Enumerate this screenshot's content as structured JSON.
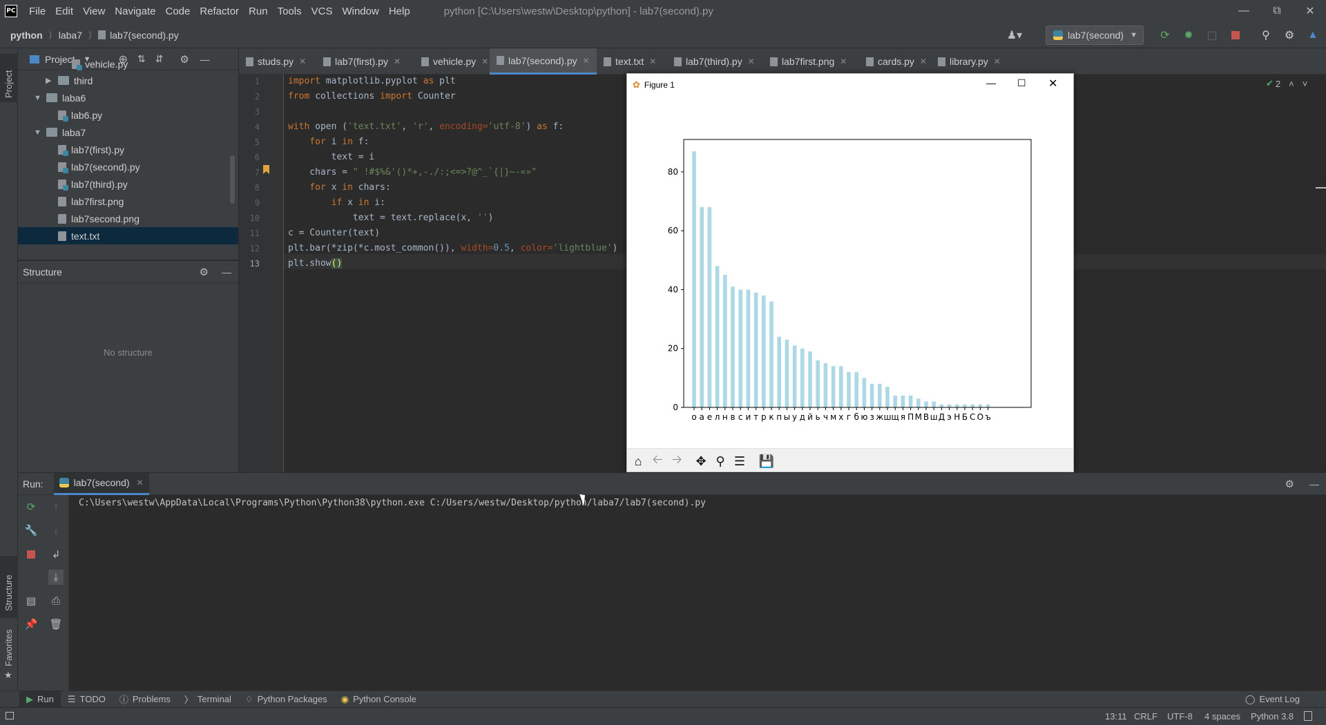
{
  "window": {
    "title": "python [C:\\Users\\westw\\Desktop\\python] - lab7(second).py",
    "menu": [
      "File",
      "Edit",
      "View",
      "Navigate",
      "Code",
      "Refactor",
      "Run",
      "Tools",
      "VCS",
      "Window",
      "Help"
    ]
  },
  "nav": {
    "breadcrumb": [
      "python",
      "laba7",
      "lab7(second).py"
    ],
    "run_config": "lab7(second)"
  },
  "side_tabs": {
    "project": "Project",
    "structure": "Structure",
    "favorites": "Favorites"
  },
  "project_panel": {
    "title": "Project",
    "tree": [
      {
        "label": "vehicle.py",
        "type": "py",
        "depth": 3
      },
      {
        "label": "third",
        "type": "folder",
        "depth": 2,
        "arrow": "▶"
      },
      {
        "label": "laba6",
        "type": "folder",
        "depth": 1,
        "arrow": "▼"
      },
      {
        "label": "lab6.py",
        "type": "py",
        "depth": 2
      },
      {
        "label": "laba7",
        "type": "folder",
        "depth": 1,
        "arrow": "▼"
      },
      {
        "label": "lab7(first).py",
        "type": "py",
        "depth": 2
      },
      {
        "label": "lab7(second).py",
        "type": "py",
        "depth": 2
      },
      {
        "label": "lab7(third).py",
        "type": "py",
        "depth": 2
      },
      {
        "label": "lab7first.png",
        "type": "file",
        "depth": 2
      },
      {
        "label": "lab7second.png",
        "type": "file",
        "depth": 2
      },
      {
        "label": "text.txt",
        "type": "file",
        "depth": 2,
        "selected": true
      }
    ]
  },
  "structure_panel": {
    "title": "Structure",
    "empty_text": "No structure"
  },
  "editor_tabs": [
    "studs.py",
    "lab7(first).py",
    "vehicle.py",
    "lab7(second).py",
    "text.txt",
    "lab7(third).py",
    "lab7first.png",
    "cards.py",
    "library.py"
  ],
  "active_tab": "lab7(second).py",
  "editor": {
    "line_numbers": [
      "1",
      "2",
      "3",
      "4",
      "5",
      "6",
      "7",
      "8",
      "9",
      "10",
      "11",
      "12",
      "13"
    ],
    "inspection_count": "2",
    "code": {
      "l1a": "import",
      "l1b": " matplotlib.pyplot ",
      "l1c": "as",
      "l1d": " plt",
      "l2a": "from",
      "l2b": " collections ",
      "l2c": "import",
      "l2d": " Counter",
      "l4a": "with",
      "l4b": " open (",
      "l4c": "'text.txt'",
      "l4d": ", ",
      "l4e": "'r'",
      "l4f": ", ",
      "l4g": "encoding=",
      "l4h": "'utf-8'",
      "l4i": ") ",
      "l4j": "as",
      "l4k": " f:",
      "l5a": "    for",
      "l5b": " i ",
      "l5c": "in",
      "l5d": " f:",
      "l6": "        text = i",
      "l7a": "    chars = ",
      "l7b": "\" !#$%&'()*+,-./:;<=>?@^_`{|}~-«»\"",
      "l8a": "    for",
      "l8b": " x ",
      "l8c": "in",
      "l8d": " chars:",
      "l9a": "        if",
      "l9b": " x ",
      "l9c": "in",
      "l9d": " i:",
      "l10a": "            text = text.replace(x, ",
      "l10b": "''",
      "l10c": ")",
      "l11": "c = Counter(text)",
      "l12a": "plt.bar(*zip(*c.most_common()), ",
      "l12b": "width=",
      "l12c": "0.5",
      "l12d": ", ",
      "l12e": "color=",
      "l12f": "'lightblue'",
      "l12g": ")",
      "l13a": "plt.show",
      "l13b": "()"
    }
  },
  "figure": {
    "title": "Figure 1",
    "toolbar": [
      "home-icon",
      "back-icon",
      "forward-icon",
      "pan-icon",
      "zoom-icon",
      "configure-icon",
      "save-icon"
    ]
  },
  "chart_data": {
    "type": "bar",
    "title": "",
    "xlabel": "",
    "ylabel": "",
    "color": "#add8e6",
    "ylim": [
      0,
      91
    ],
    "yticks": [
      0,
      20,
      40,
      60,
      80
    ],
    "categories": [
      "о",
      "а",
      "е",
      "л",
      "н",
      "в",
      "с",
      "и",
      "т",
      "р",
      "к",
      "п",
      "ы",
      "у",
      "д",
      "й",
      "ь",
      "ч",
      "м",
      "х",
      "г",
      "б",
      "ю",
      "з",
      "ж",
      "ш",
      "щ",
      "я",
      "П",
      "М",
      "В",
      "ш",
      "Д",
      "э",
      "Н",
      "Б",
      "С",
      "О",
      "ъ"
    ],
    "values": [
      87,
      68,
      68,
      48,
      45,
      41,
      40,
      40,
      39,
      38,
      36,
      24,
      23,
      21,
      20,
      19,
      16,
      15,
      14,
      14,
      12,
      12,
      10,
      8,
      8,
      7,
      4,
      4,
      4,
      3,
      2,
      2,
      1,
      1,
      1,
      1,
      1,
      1,
      1
    ],
    "grid": false
  },
  "run_panel": {
    "label": "Run:",
    "tab": "lab7(second)",
    "output": "C:\\Users\\westw\\AppData\\Local\\Programs\\Python\\Python38\\python.exe C:/Users/westw/Desktop/python/laba7/lab7(second).py"
  },
  "bottom_tabs": [
    "Run",
    "TODO",
    "Problems",
    "Terminal",
    "Python Packages",
    "Python Console"
  ],
  "event_log": "Event Log",
  "status": {
    "position": "13:11",
    "line_sep": "CRLF",
    "encoding": "UTF-8",
    "indent": "4 spaces",
    "interpreter": "Python 3.8"
  }
}
